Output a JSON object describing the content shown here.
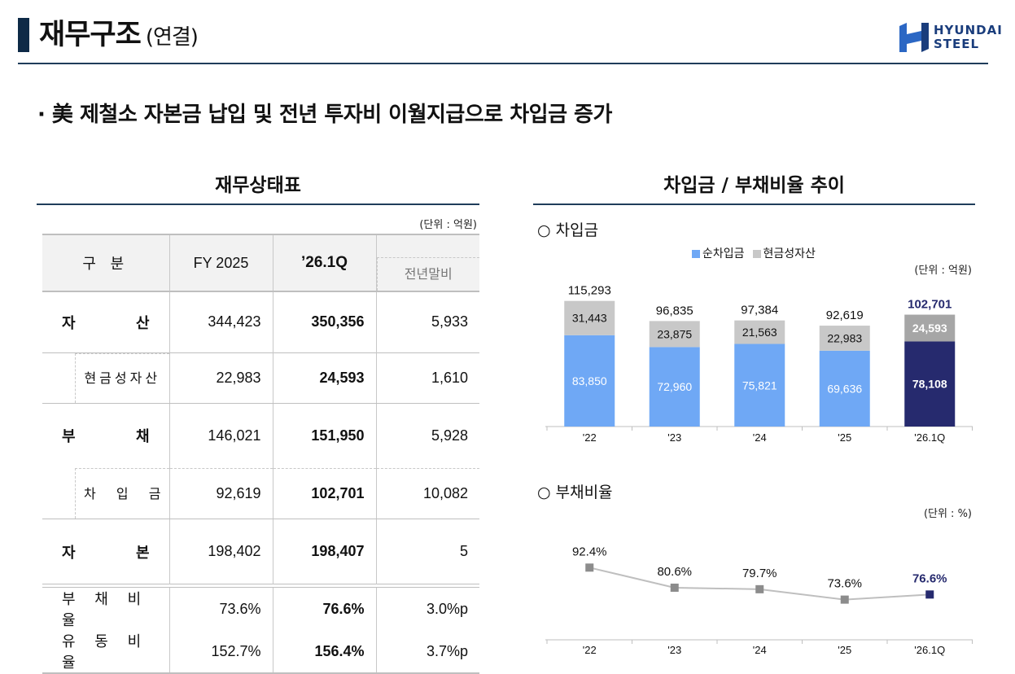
{
  "header": {
    "title": "재무구조",
    "title_sub": "(연결)",
    "logo_line1": "HYUNDAI",
    "logo_line2": "STEEL",
    "headline": "· 美 제철소 자본금 납입 및 전년 투자비 이월지급으로 차입금 증가"
  },
  "table": {
    "title": "재무상태표",
    "unit": "(단위 : 억원)",
    "col_category": "구 분",
    "col_fy": "FY 2025",
    "col_q": "’26.1Q",
    "col_diff": "전년말비",
    "rows": [
      {
        "label": "자 산",
        "fy": "344,423",
        "q": "350,356",
        "diff": "5,933"
      },
      {
        "label": "현금성자산",
        "fy": "22,983",
        "q": "24,593",
        "diff": "1,610"
      },
      {
        "label": "부 채",
        "fy": "146,021",
        "q": "151,950",
        "diff": "5,928"
      },
      {
        "label": "차 입 금",
        "fy": "92,619",
        "q": "102,701",
        "diff": "10,082"
      },
      {
        "label": "자 본",
        "fy": "198,402",
        "q": "198,407",
        "diff": "5"
      }
    ],
    "ratios": [
      {
        "label": "부 채 비 율",
        "fy": "73.6%",
        "q": "76.6%",
        "diff": "3.0%p"
      },
      {
        "label": "유 동 비 율",
        "fy": "152.7%",
        "q": "156.4%",
        "diff": "3.7%p"
      }
    ]
  },
  "charts_panel": {
    "title": "차입금 / 부채비율 추이"
  },
  "chart_data": [
    {
      "type": "bar",
      "title": "○ 차입금",
      "unit": "(단위 : 억원)",
      "categories": [
        "'22",
        "'23",
        "'24",
        "'25",
        "'26.1Q"
      ],
      "series": [
        {
          "name": "순차입금",
          "values": [
            83850,
            72960,
            75821,
            69636,
            78108
          ],
          "color": "#6fa8f5",
          "highlight_color": "#262a6e"
        },
        {
          "name": "현금성자산",
          "values": [
            31443,
            23875,
            21563,
            22983,
            24593
          ],
          "color": "#c8c8c8",
          "highlight_color": "#a6a6a6"
        }
      ],
      "totals": [
        115293,
        96835,
        97384,
        92619,
        102701
      ],
      "ylim": [
        0,
        130000
      ]
    },
    {
      "type": "line",
      "title": "○ 부채비율",
      "unit": "(단위 : %)",
      "categories": [
        "'22",
        "'23",
        "'24",
        "'25",
        "'26.1Q"
      ],
      "values": [
        92.4,
        80.6,
        79.7,
        73.6,
        76.6
      ],
      "value_labels": [
        "92.4%",
        "80.6%",
        "79.7%",
        "73.6%",
        "76.6%"
      ],
      "ylim": [
        50,
        115
      ],
      "color": "#8c8c8c",
      "highlight_color": "#262a6e"
    }
  ]
}
